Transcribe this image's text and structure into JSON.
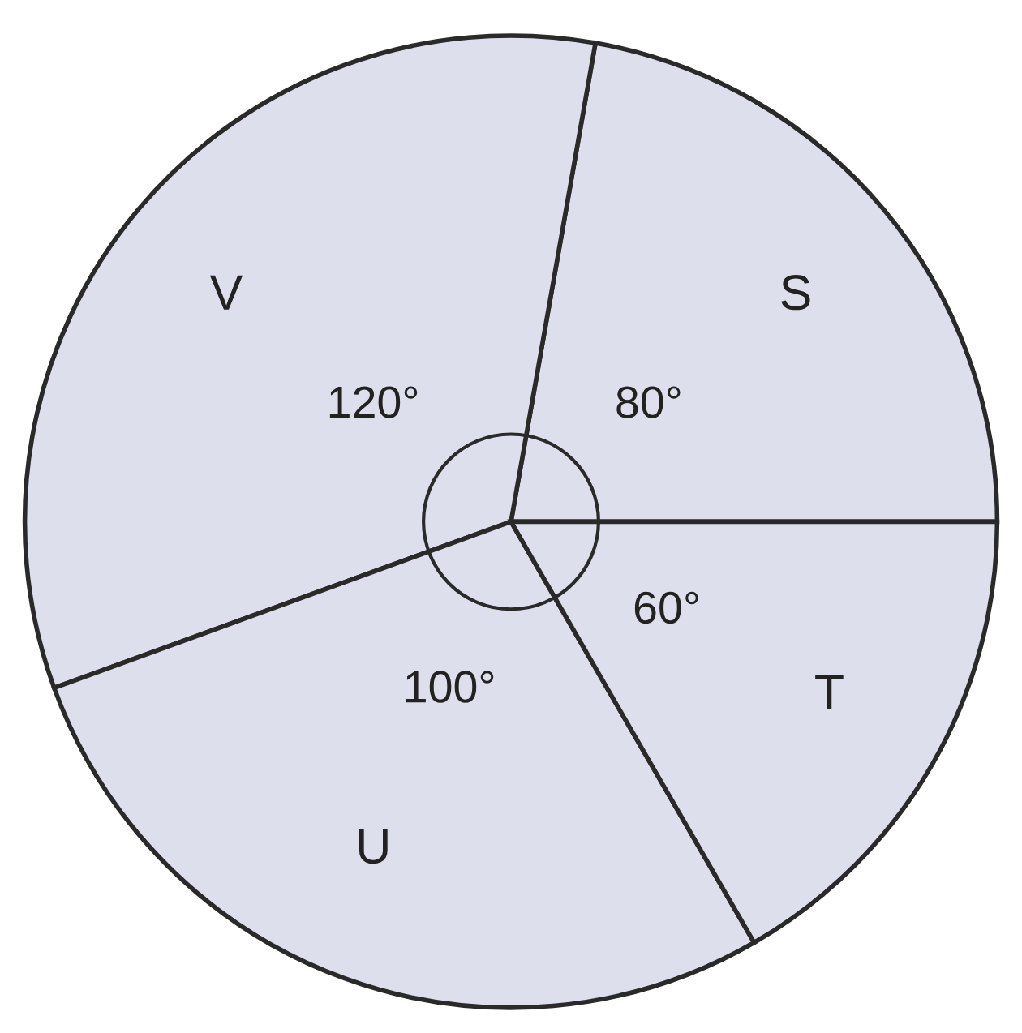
{
  "chart_data": {
    "type": "pie",
    "categories": [
      "S",
      "V",
      "U",
      "T"
    ],
    "values": [
      80,
      120,
      100,
      60
    ],
    "colors": [
      "#dde0ec",
      "#dde0ec",
      "#dde0ec",
      "#dde0ec"
    ],
    "value_labels": [
      "80°",
      "120°",
      "100°",
      "60°"
    ]
  }
}
